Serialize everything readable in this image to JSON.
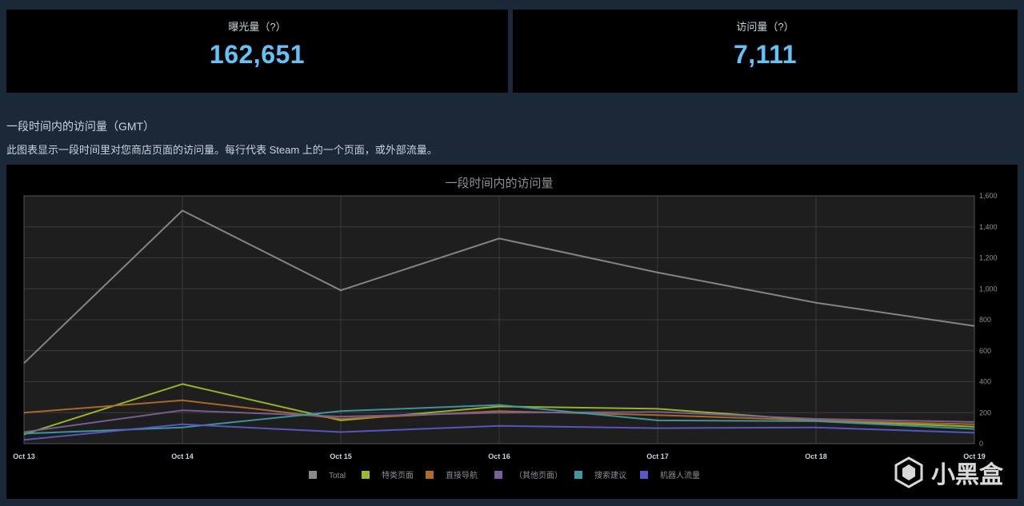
{
  "stats": {
    "impressions": {
      "label": "曝光量（?）",
      "value": "162,651"
    },
    "visits": {
      "label": "访问量（?）",
      "value": "7,111"
    }
  },
  "section": {
    "title": "一段时间内的访问量（GMT）",
    "description": "此图表显示一段时间里对您商店页面的访问量。每行代表 Steam 上的一个页面，或外部流量。"
  },
  "watermark": {
    "text": "小黑盒"
  },
  "chart_data": {
    "type": "line",
    "title": "一段时间内的访问量",
    "x": [
      "Oct 13",
      "Oct 14",
      "Oct 15",
      "Oct 16",
      "Oct 17",
      "Oct 18",
      "Oct 19"
    ],
    "ylim": [
      0,
      1600
    ],
    "yticks": [
      0,
      200,
      400,
      600,
      800,
      1000,
      1200,
      1400,
      1600
    ],
    "ytick_labels": [
      "0",
      "200",
      "400",
      "600",
      "800",
      "1,000",
      "1,200",
      "1,400",
      "1,600"
    ],
    "grid": true,
    "legend": "bottom",
    "series": [
      {
        "name": "Total",
        "color": "#8a8a8a",
        "values": [
          520,
          1505,
          990,
          1325,
          1105,
          910,
          760
        ]
      },
      {
        "name": "特类页面",
        "color": "#9bbb2b",
        "values": [
          60,
          385,
          150,
          240,
          225,
          150,
          110
        ]
      },
      {
        "name": "直接导航",
        "color": "#b06d2a",
        "values": [
          200,
          280,
          160,
          210,
          185,
          150,
          125
        ]
      },
      {
        "name": "（其他页面）",
        "color": "#7a5f99",
        "values": [
          75,
          215,
          175,
          200,
          205,
          160,
          140
        ]
      },
      {
        "name": "搜索建议",
        "color": "#3f9aa3",
        "values": [
          65,
          105,
          210,
          250,
          150,
          145,
          95
        ]
      },
      {
        "name": "机器人流量",
        "color": "#5858c8",
        "values": [
          25,
          125,
          75,
          115,
          100,
          105,
          70
        ]
      }
    ]
  }
}
